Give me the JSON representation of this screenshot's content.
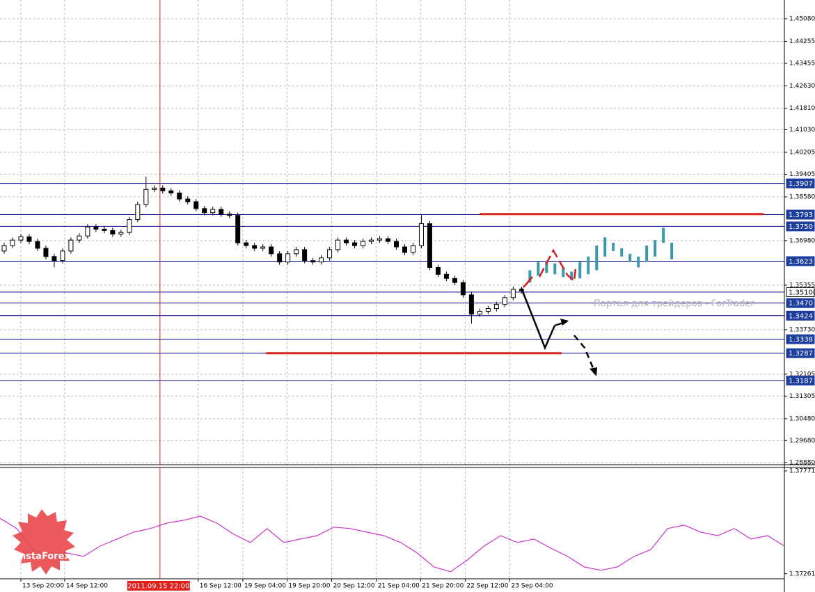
{
  "chart_data": {
    "type": "candlestick",
    "xlim": [
      0,
      94
    ],
    "ylim": [
      1.28799,
      1.45766
    ],
    "grid": true,
    "yticks": [
      {
        "value": 1.4508,
        "label": "1.45080"
      },
      {
        "value": 1.44255,
        "label": "1.44255"
      },
      {
        "value": 1.43455,
        "label": "1.43455"
      },
      {
        "value": 1.4263,
        "label": "1.42630"
      },
      {
        "value": 1.4181,
        "label": "1.41810"
      },
      {
        "value": 1.4103,
        "label": "1.41030"
      },
      {
        "value": 1.40205,
        "label": "1.40205"
      },
      {
        "value": 1.39405,
        "label": "1.39405"
      },
      {
        "value": 1.3858,
        "label": "1.38580"
      },
      {
        "value": 1.3698,
        "label": "1.36980"
      },
      {
        "value": 1.35355,
        "label": "1.35355"
      },
      {
        "value": 1.3373,
        "label": "1.33730"
      },
      {
        "value": 1.32105,
        "label": "1.32105"
      },
      {
        "value": 1.31305,
        "label": "1.31305"
      },
      {
        "value": 1.3048,
        "label": "1.30480"
      },
      {
        "value": 1.2968,
        "label": "1.29680"
      },
      {
        "value": 1.2888,
        "label": "1.28880"
      }
    ],
    "xticks": [
      {
        "value": 2.5,
        "label": "13 Sep 20:00"
      },
      {
        "value": 7.75,
        "label": "14 Sep 12:00"
      },
      {
        "value": 23.75,
        "label": "16 Sep 12:00"
      },
      {
        "value": 29.1,
        "label": "19 Sep 04:00"
      },
      {
        "value": 34.4,
        "label": "19 Sep 20:00"
      },
      {
        "value": 39.75,
        "label": "20 Sep 12:00"
      },
      {
        "value": 45.1,
        "label": "21 Sep 04:00"
      },
      {
        "value": 50.4,
        "label": "21 Sep 20:00"
      },
      {
        "value": 55.75,
        "label": "22 Sep 12:00"
      },
      {
        "value": 61.1,
        "label": "23 Sep 04:00"
      }
    ],
    "ohlc": {
      "open": [
        1.366,
        1.368,
        1.37,
        1.3712,
        1.3695,
        1.367,
        1.364,
        1.3625,
        1.366,
        1.37,
        1.3715,
        1.3748,
        1.374,
        1.3735,
        1.3722,
        1.3728,
        1.3775,
        1.383,
        1.3885,
        1.389,
        1.388,
        1.3872,
        1.385,
        1.384,
        1.3815,
        1.38,
        1.3812,
        1.3795,
        1.379,
        1.369,
        1.368,
        1.367,
        1.3675,
        1.365,
        1.362,
        1.365,
        1.3665,
        1.3625,
        1.362,
        1.3635,
        1.3665,
        1.37,
        1.369,
        1.368,
        1.3695,
        1.37,
        1.3705,
        1.3695,
        1.3675,
        1.3655,
        1.368,
        1.376,
        1.36,
        1.3575,
        1.356,
        1.3545,
        1.35,
        1.343,
        1.344,
        1.345,
        1.3465,
        1.349,
        1.352
      ],
      "high": [
        1.369,
        1.371,
        1.3722,
        1.3722,
        1.3705,
        1.368,
        1.365,
        1.367,
        1.371,
        1.3725,
        1.3758,
        1.3758,
        1.375,
        1.3745,
        1.3738,
        1.3785,
        1.384,
        1.3932,
        1.39,
        1.39,
        1.389,
        1.3882,
        1.386,
        1.385,
        1.3825,
        1.3822,
        1.3822,
        1.3805,
        1.38,
        1.37,
        1.369,
        1.3685,
        1.3685,
        1.366,
        1.366,
        1.3675,
        1.3675,
        1.3635,
        1.3645,
        1.3675,
        1.371,
        1.371,
        1.37,
        1.3705,
        1.371,
        1.3715,
        1.3715,
        1.3705,
        1.3685,
        1.369,
        1.3793,
        1.377,
        1.361,
        1.3585,
        1.357,
        1.3555,
        1.351,
        1.345,
        1.346,
        1.3475,
        1.35,
        1.353,
        1.353
      ],
      "low": [
        1.365,
        1.367,
        1.369,
        1.3685,
        1.366,
        1.363,
        1.36,
        1.3615,
        1.365,
        1.369,
        1.3705,
        1.373,
        1.3725,
        1.3712,
        1.3712,
        1.3718,
        1.3765,
        1.382,
        1.3875,
        1.387,
        1.3862,
        1.384,
        1.383,
        1.3805,
        1.379,
        1.379,
        1.3785,
        1.378,
        1.368,
        1.367,
        1.366,
        1.366,
        1.364,
        1.361,
        1.361,
        1.364,
        1.3615,
        1.361,
        1.361,
        1.3625,
        1.3655,
        1.368,
        1.367,
        1.367,
        1.3685,
        1.369,
        1.3685,
        1.3665,
        1.3645,
        1.3645,
        1.367,
        1.359,
        1.3565,
        1.355,
        1.3535,
        1.349,
        1.3395,
        1.342,
        1.343,
        1.344,
        1.3455,
        1.348,
        1.3505
      ],
      "close": [
        1.368,
        1.37,
        1.3712,
        1.3695,
        1.367,
        1.364,
        1.3625,
        1.366,
        1.37,
        1.3715,
        1.3748,
        1.374,
        1.3735,
        1.3722,
        1.3728,
        1.3775,
        1.383,
        1.3885,
        1.389,
        1.388,
        1.3872,
        1.385,
        1.384,
        1.3815,
        1.38,
        1.3812,
        1.3795,
        1.379,
        1.369,
        1.368,
        1.367,
        1.3675,
        1.365,
        1.362,
        1.365,
        1.3665,
        1.3625,
        1.362,
        1.3635,
        1.3665,
        1.37,
        1.369,
        1.368,
        1.3695,
        1.37,
        1.3705,
        1.3695,
        1.3675,
        1.3655,
        1.368,
        1.376,
        1.36,
        1.3575,
        1.356,
        1.3545,
        1.35,
        1.343,
        1.344,
        1.345,
        1.3465,
        1.349,
        1.352,
        1.3515
      ]
    },
    "forecast": {
      "color": "#3a9aa8",
      "x": [
        63,
        64,
        65,
        66,
        67,
        68,
        69,
        70,
        71,
        72,
        73,
        74,
        75,
        76,
        77,
        78,
        79,
        80
      ],
      "high": [
        1.359,
        1.362,
        1.3625,
        1.3615,
        1.36,
        1.3585,
        1.362,
        1.364,
        1.368,
        1.371,
        1.369,
        1.367,
        1.365,
        1.364,
        1.368,
        1.37,
        1.3745,
        1.369
      ],
      "low": [
        1.3545,
        1.357,
        1.358,
        1.3575,
        1.3565,
        1.3555,
        1.356,
        1.3575,
        1.359,
        1.364,
        1.366,
        1.364,
        1.362,
        1.36,
        1.362,
        1.364,
        1.369,
        1.363
      ]
    },
    "levels": [
      {
        "value": 1.3907,
        "label": "1.3907",
        "color": "#1f3f9e"
      },
      {
        "value": 1.3793,
        "label": "1.3793",
        "color": "#1f3f9e"
      },
      {
        "value": 1.375,
        "label": "1.3750",
        "color": "#1f3f9e"
      },
      {
        "value": 1.3623,
        "label": "1.3623",
        "color": "#1f3f9e"
      },
      {
        "value": 1.351,
        "label": "1.35100",
        "color": "#ffffff"
      },
      {
        "value": 1.347,
        "label": "1.3470",
        "color": "#1f3f9e"
      },
      {
        "value": 1.3424,
        "label": "1.3424",
        "color": "#1f3f9e"
      },
      {
        "value": 1.3338,
        "label": "1.3338",
        "color": "#1f3f9e"
      },
      {
        "value": 1.3287,
        "label": "1.3287",
        "color": "#1f3f9e"
      },
      {
        "value": 1.3187,
        "label": "1.3187",
        "color": "#1f3f9e"
      }
    ],
    "segments": [
      {
        "value": 1.3795,
        "x": [
          57.5,
          91.5
        ],
        "color": "#e0201b"
      },
      {
        "value": 1.3287,
        "x": [
          31.9,
          67.3
        ],
        "color": "#e0201b"
      }
    ],
    "crosshair": {
      "x": 19.17,
      "label": "2011.09.15 22:00",
      "color": "#e0201b"
    },
    "watermark": "Портал для трейдеров - ForTrader",
    "logo": "InstaForex",
    "indicator": {
      "type": "line",
      "color": "#cc33cc",
      "ylim": [
        1.37236,
        1.37788
      ],
      "yticks": [
        {
          "value": 1.37771,
          "label": "1.37771"
        },
        {
          "value": 1.37261,
          "label": "1.37261"
        }
      ],
      "x": [
        0,
        2,
        4,
        6,
        8,
        10,
        12,
        14,
        16,
        18,
        20,
        22,
        24,
        26,
        28,
        30,
        32,
        34,
        36,
        38,
        40,
        42,
        44,
        46,
        48,
        50,
        52,
        54,
        56,
        58,
        60,
        62,
        64,
        66,
        68,
        70,
        72,
        74,
        76,
        78,
        80,
        82,
        84,
        86,
        88,
        90,
        92,
        94
      ],
      "values": [
        1.37536,
        1.37485,
        1.37381,
        1.37347,
        1.37364,
        1.37347,
        1.37398,
        1.37433,
        1.37467,
        1.37485,
        1.37512,
        1.37526,
        1.37547,
        1.37512,
        1.37457,
        1.37416,
        1.37485,
        1.37416,
        1.37433,
        1.3745,
        1.37492,
        1.37485,
        1.37467,
        1.3745,
        1.37416,
        1.37364,
        1.37295,
        1.37271,
        1.37329,
        1.37398,
        1.3745,
        1.37416,
        1.37433,
        1.37388,
        1.37347,
        1.37295,
        1.37278,
        1.37295,
        1.37347,
        1.37381,
        1.37485,
        1.37502,
        1.37467,
        1.3745,
        1.37485,
        1.37433,
        1.3745,
        1.37398
      ]
    }
  }
}
